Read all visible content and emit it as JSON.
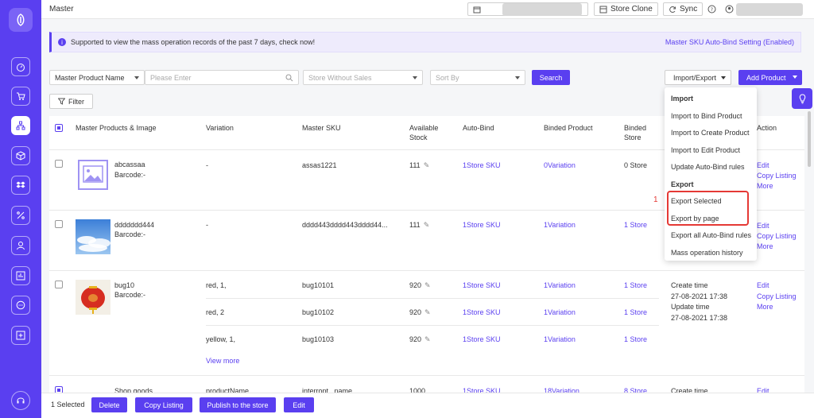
{
  "header": {
    "title": "Master",
    "store_clone": "Store Clone",
    "sync": "Sync"
  },
  "notice": {
    "message": "Supported to view the mass operation records of the past 7 days, check now!",
    "link": "Master SKU Auto-Bind Setting (Enabled)"
  },
  "filters": {
    "field_select": "Master Product Name",
    "search_placeholder": "Please Enter",
    "store_select": "Store Without Sales",
    "sort_select": "Sort By",
    "search_button": "Search",
    "filter_button": "Filter",
    "import_export_button": "Import/Export",
    "add_product_button": "Add Product"
  },
  "table": {
    "headers": {
      "products": "Master Products & Image",
      "variation": "Variation",
      "sku": "Master SKU",
      "stock_line1": "Available",
      "stock_line2": "Stock",
      "autobind": "Auto-Bind",
      "binded_product": "Binded Product",
      "binded_store_line1": "Binded",
      "binded_store_line2": "Store",
      "action": "Action"
    },
    "rows": [
      {
        "name": "abcassaa",
        "barcode": "Barcode:-",
        "variation": "-",
        "sku": "assas1221",
        "stock": "111",
        "autobind": "1Store SKU",
        "binded_product": "0Variation",
        "binded_store": "0 Store",
        "actions": [
          "Edit",
          "Copy Listing",
          "More"
        ]
      },
      {
        "name": "ddddddd444",
        "barcode": "Barcode:-",
        "variation": "-",
        "sku": "dddd443dddd443dddd44...",
        "stock": "111",
        "autobind": "1Store SKU",
        "binded_product": "1Variation",
        "binded_store": "1 Store",
        "actions": [
          "Edit",
          "Copy Listing",
          "More"
        ]
      },
      {
        "name": "bug10",
        "barcode": "Barcode:-",
        "variations": [
          {
            "variation": "red, 1,",
            "sku": "bug10101",
            "stock": "920",
            "autobind": "1Store SKU",
            "binded_product": "1Variation",
            "binded_store": "1 Store"
          },
          {
            "variation": "red, 2",
            "sku": "bug10102",
            "stock": "920",
            "autobind": "1Store SKU",
            "binded_product": "1Variation",
            "binded_store": "1 Store"
          },
          {
            "variation": "yellow, 1,",
            "sku": "bug10103",
            "stock": "920",
            "autobind": "1Store SKU",
            "binded_product": "1Variation",
            "binded_store": "1 Store"
          }
        ],
        "view_more": "View more",
        "create_time_label": "Create time",
        "create_time": "27-08-2021 17:38",
        "update_time_label": "Update time",
        "update_time": "27-08-2021 17:38",
        "actions": [
          "Edit",
          "Copy Listing",
          "More"
        ]
      },
      {
        "name": "Shop goods",
        "variation": "productName",
        "sku": "interropt_ name",
        "stock": "1000",
        "autobind": "1Store SKU",
        "binded_product": "18Variation",
        "binded_store": "8 Store",
        "create_time_label": "Create time",
        "actions": [
          "Edit"
        ]
      }
    ]
  },
  "dropdown": {
    "import_header": "Import",
    "import_items": [
      "Import to Bind Product",
      "Import to Create Product",
      "Import to Edit Product",
      "Update Auto-Bind rules"
    ],
    "export_header": "Export",
    "export_items": [
      "Export Selected",
      "Export by page",
      "Export all Auto-Bind rules",
      "Mass operation history"
    ]
  },
  "annotation": {
    "label": "1",
    "color": "#e53935"
  },
  "bottom": {
    "selected": "1 Selected",
    "delete": "Delete",
    "copy_listing": "Copy Listing",
    "publish": "Publish to the store",
    "edit": "Edit"
  },
  "colors": {
    "accent": "#5a3ff0",
    "link": "#5a3ff0",
    "sidebar": "#5a3ff0"
  }
}
